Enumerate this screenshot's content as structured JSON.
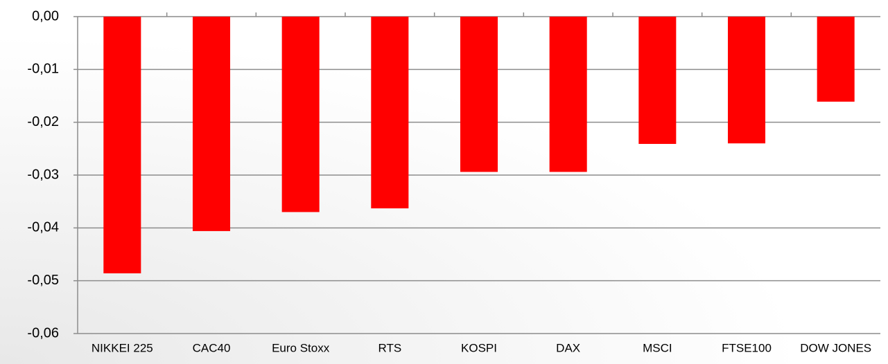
{
  "chart_data": {
    "type": "bar",
    "categories": [
      "NIKKEI 225",
      "CAC40",
      "Euro Stoxx",
      "RTS",
      "KOSPI",
      "DAX",
      "MSCI",
      "FTSE100",
      "DOW JONES"
    ],
    "values": [
      -0.0486,
      -0.0406,
      -0.037,
      -0.0363,
      -0.0294,
      -0.0294,
      -0.0241,
      -0.024,
      -0.0161
    ],
    "color": "#ff0000",
    "ylim": [
      -0.06,
      0
    ],
    "yticks": [
      {
        "value": 0,
        "label": "0,00"
      },
      {
        "value": -0.01,
        "label": "-0,01"
      },
      {
        "value": -0.02,
        "label": "-0,02"
      },
      {
        "value": -0.03,
        "label": "-0,03"
      },
      {
        "value": -0.04,
        "label": "-0,04"
      },
      {
        "value": -0.05,
        "label": "-0,05"
      },
      {
        "value": -0.06,
        "label": "-0,06"
      }
    ],
    "grid": true
  }
}
